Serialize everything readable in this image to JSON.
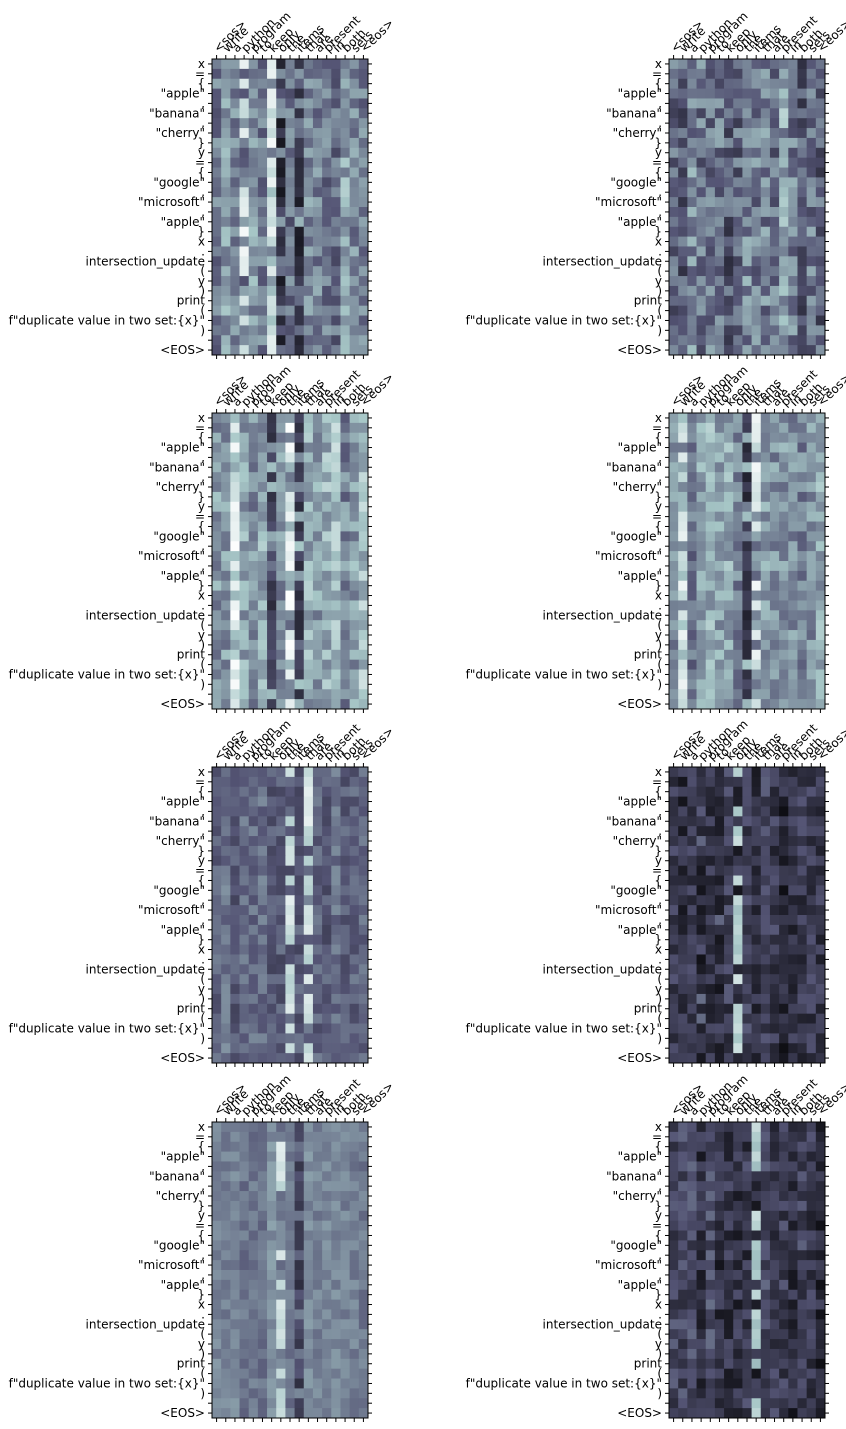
{
  "colormap": {
    "name": "bone",
    "stops": [
      "#000000",
      "#545474",
      "#a7c7c7",
      "#ffffff"
    ]
  },
  "chart_data": {
    "type": "heatmap",
    "panel_count": 8,
    "layout": "4 rows x 2 columns",
    "x_tick_labels": [
      "<sos>",
      "write",
      "a",
      "python",
      "program",
      "to",
      "keep",
      "only",
      "the",
      "items",
      "that",
      "are",
      "present",
      "in",
      "both",
      "sets",
      "<eos>"
    ],
    "y_tick_labels": [
      "x",
      "=",
      "{",
      "\"apple\"",
      ",",
      "\"banana\"",
      ",",
      "\"cherry\"",
      "}",
      "y",
      "=",
      "{",
      "\"google\"",
      ",",
      "\"microsoft\"",
      ",",
      "\"apple\"",
      "}",
      "x",
      ".",
      "intersection_update",
      "(",
      "y",
      ")",
      "print",
      "(",
      "f\"duplicate value in two set:{x}\"",
      ")",
      "",
      "<EOS>"
    ],
    "value_range": [
      0,
      1
    ],
    "panels": [
      {
        "mean": 0.55,
        "spread": 0.22,
        "hot_columns": [
          7,
          9
        ],
        "hot_level": 0.1,
        "light_columns": [
          3,
          6
        ],
        "light_level": 0.82
      },
      {
        "mean": 0.5,
        "spread": 0.26,
        "hot_columns": [],
        "hot_level": 0.5,
        "light_columns": [],
        "light_level": 0.5
      },
      {
        "mean": 0.62,
        "spread": 0.22,
        "hot_columns": [
          6,
          9
        ],
        "hot_level": 0.18,
        "light_columns": [
          2,
          8
        ],
        "light_level": 0.85
      },
      {
        "mean": 0.58,
        "spread": 0.2,
        "hot_columns": [
          8
        ],
        "hot_level": 0.15,
        "light_columns": [
          1,
          9
        ],
        "light_level": 0.82
      },
      {
        "mean": 0.42,
        "spread": 0.14,
        "hot_columns": [],
        "hot_level": 0.5,
        "light_columns": [
          8,
          10
        ],
        "light_level": 0.78
      },
      {
        "mean": 0.26,
        "spread": 0.18,
        "hot_columns": [
          3,
          5
        ],
        "hot_level": 0.08,
        "light_columns": [
          7
        ],
        "light_level": 0.72
      },
      {
        "mean": 0.52,
        "spread": 0.1,
        "hot_columns": [
          9
        ],
        "hot_level": 0.2,
        "light_columns": [
          7
        ],
        "light_level": 0.78
      },
      {
        "mean": 0.26,
        "spread": 0.18,
        "hot_columns": [
          8
        ],
        "hot_level": 0.12,
        "light_columns": [
          9
        ],
        "light_level": 0.7
      }
    ]
  }
}
